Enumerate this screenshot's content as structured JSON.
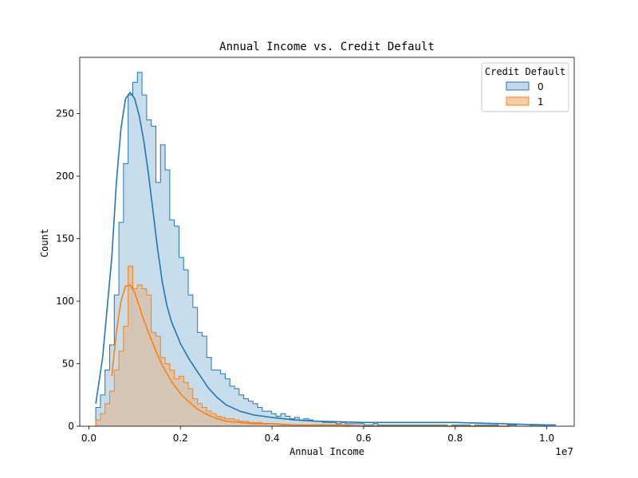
{
  "chart_data": {
    "type": "bar",
    "subtype": "histogram-step-with-kde",
    "title": "Annual Income vs. Credit Default",
    "xlabel": "Annual Income",
    "ylabel": "Count",
    "x_offset_label": "1e7",
    "xlim": [
      -0.02,
      1.06
    ],
    "ylim": [
      0,
      295
    ],
    "xticks": [
      0.0,
      0.2,
      0.4,
      0.6,
      0.8,
      1.0
    ],
    "xtick_labels": [
      "0.0",
      "0.2",
      "0.4",
      "0.6",
      "0.8",
      "1.0"
    ],
    "yticks": [
      0,
      50,
      100,
      150,
      200,
      250
    ],
    "ytick_labels": [
      "0",
      "50",
      "100",
      "150",
      "200",
      "250"
    ],
    "grid": false,
    "legend": {
      "title": "Credit Default",
      "placement": "top-right"
    },
    "bin_start": 0.015,
    "bin_width": 0.0101,
    "series": [
      {
        "name": "0",
        "color": "#1f77b4",
        "fill": "#c5d8ea",
        "counts": [
          15,
          25,
          45,
          65,
          105,
          163,
          210,
          265,
          275,
          283,
          265,
          245,
          240,
          195,
          225,
          205,
          165,
          160,
          135,
          125,
          105,
          95,
          75,
          72,
          55,
          45,
          45,
          42,
          38,
          32,
          30,
          25,
          22,
          20,
          18,
          15,
          12,
          12,
          10,
          8,
          10,
          8,
          6,
          7,
          5,
          6,
          5,
          4,
          4,
          3,
          3,
          3,
          2,
          3,
          2,
          2,
          2,
          2,
          1,
          1,
          2,
          1,
          1,
          1,
          1,
          1,
          1,
          1,
          1,
          1,
          1,
          1,
          1,
          1,
          1,
          1,
          0,
          1,
          1,
          1,
          1,
          0,
          1,
          1,
          1,
          1,
          1,
          0,
          0,
          1,
          1,
          0,
          0,
          0,
          1,
          1,
          1
        ],
        "kde_x": [
          0.015,
          0.03,
          0.05,
          0.06,
          0.07,
          0.08,
          0.09,
          0.1,
          0.11,
          0.12,
          0.13,
          0.14,
          0.15,
          0.16,
          0.17,
          0.18,
          0.2,
          0.22,
          0.24,
          0.26,
          0.28,
          0.3,
          0.33,
          0.36,
          0.4,
          0.45,
          0.5,
          0.6,
          0.7,
          0.8,
          0.9,
          1.0,
          1.02
        ],
        "kde_y": [
          18,
          55,
          135,
          195,
          238,
          262,
          267,
          262,
          248,
          228,
          202,
          172,
          142,
          116,
          97,
          84,
          66,
          53,
          42,
          31,
          23,
          17,
          12,
          9,
          7,
          5,
          4,
          3,
          3,
          3,
          2,
          1,
          1
        ]
      },
      {
        "name": "1",
        "color": "#ff7f0e",
        "fill": "#f8cfaa",
        "counts": [
          5,
          10,
          18,
          28,
          45,
          60,
          80,
          128,
          110,
          113,
          110,
          105,
          75,
          72,
          55,
          50,
          45,
          38,
          40,
          35,
          30,
          22,
          18,
          15,
          12,
          10,
          8,
          7,
          6,
          6,
          5,
          4,
          4,
          3,
          3,
          3,
          2,
          2,
          2,
          2,
          1,
          1,
          1,
          1,
          1,
          1,
          1,
          1,
          1,
          1,
          1,
          1,
          1,
          1,
          0,
          0,
          0,
          0,
          0,
          0,
          0,
          0,
          0,
          0,
          0,
          0,
          0,
          0,
          0,
          0,
          0,
          0,
          0,
          0,
          0,
          0,
          0,
          0,
          0,
          0,
          0,
          0,
          0,
          0,
          0,
          0,
          0,
          0,
          0,
          0,
          0,
          0,
          0,
          0,
          0,
          0,
          0
        ],
        "kde_x": [
          0.05,
          0.06,
          0.07,
          0.08,
          0.09,
          0.1,
          0.11,
          0.12,
          0.13,
          0.14,
          0.15,
          0.16,
          0.18,
          0.2,
          0.22,
          0.24,
          0.26,
          0.28,
          0.3,
          0.33,
          0.36,
          0.4,
          0.45,
          0.5,
          0.55,
          0.6,
          0.7,
          0.8,
          0.92
        ],
        "kde_y": [
          40,
          75,
          100,
          112,
          113,
          107,
          96,
          85,
          75,
          66,
          57,
          49,
          36,
          26,
          19,
          13,
          9,
          6,
          4,
          3,
          2,
          2,
          1,
          1,
          1,
          0,
          0,
          0,
          0
        ]
      }
    ]
  }
}
